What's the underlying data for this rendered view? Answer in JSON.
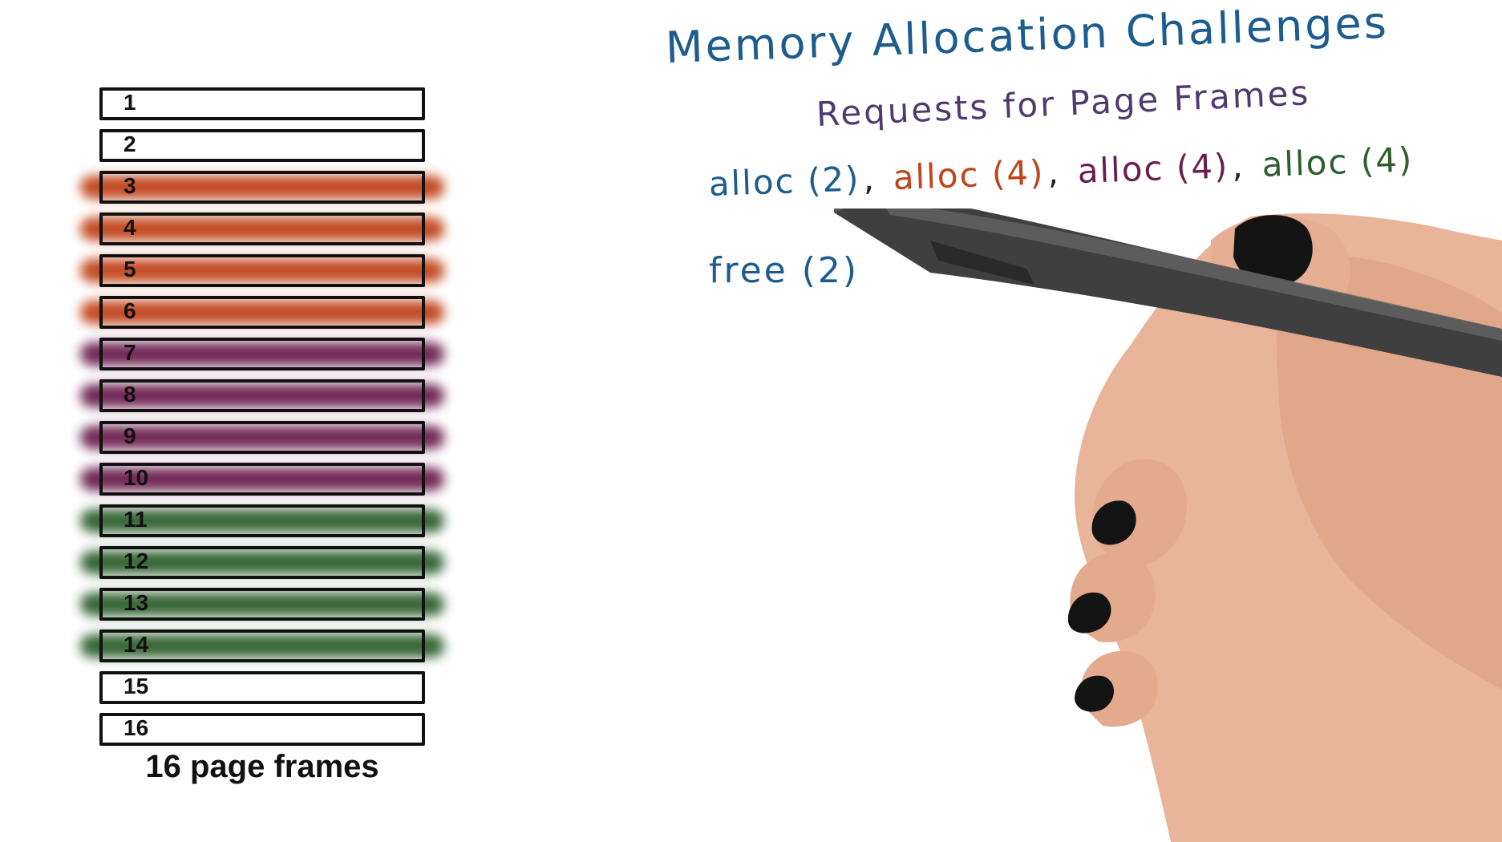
{
  "frames": {
    "caption": "16 page frames",
    "items": [
      {
        "label": "1",
        "state": "free"
      },
      {
        "label": "2",
        "state": "free"
      },
      {
        "label": "3",
        "state": "alloc-orange"
      },
      {
        "label": "4",
        "state": "alloc-orange"
      },
      {
        "label": "5",
        "state": "alloc-orange"
      },
      {
        "label": "6",
        "state": "alloc-orange"
      },
      {
        "label": "7",
        "state": "alloc-purple"
      },
      {
        "label": "8",
        "state": "alloc-purple"
      },
      {
        "label": "9",
        "state": "alloc-purple"
      },
      {
        "label": "10",
        "state": "alloc-purple"
      },
      {
        "label": "11",
        "state": "alloc-green"
      },
      {
        "label": "12",
        "state": "alloc-green"
      },
      {
        "label": "13",
        "state": "alloc-green"
      },
      {
        "label": "14",
        "state": "alloc-green"
      },
      {
        "label": "15",
        "state": "free"
      },
      {
        "label": "16",
        "state": "free"
      }
    ]
  },
  "colors": {
    "alloc-orange": "#c0431a",
    "alloc-purple": "#6a1e4e",
    "alloc-green": "#2d5f2e",
    "blue_ink": "#1c5c8e",
    "purple_ink": "#4f3a6e"
  },
  "notes": {
    "title": "Memory Allocation Challenges",
    "subtitle": "Requests for Page Frames",
    "requests": [
      {
        "text": "alloc (2)",
        "color": "#1c5c8e"
      },
      {
        "text": "alloc (4)",
        "color": "#c0431a"
      },
      {
        "text": "alloc (4)",
        "color": "#6a1e4e"
      },
      {
        "text": "alloc (4)",
        "color": "#2d5f2e"
      }
    ],
    "free_request": "free (2)"
  },
  "illustration": {
    "icons": [
      "hand-icon",
      "pen-icon"
    ]
  }
}
